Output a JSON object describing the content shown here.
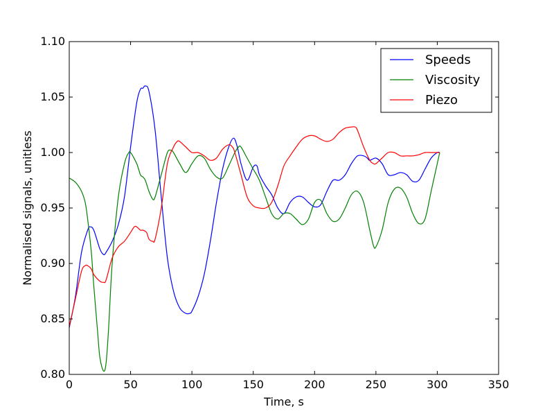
{
  "chart_data": {
    "type": "line",
    "title": "",
    "xlabel": "Time, s",
    "ylabel": "Normalised signals, unitless",
    "xlim": [
      0,
      350
    ],
    "ylim": [
      0.8,
      1.1
    ],
    "xticks": [
      0,
      50,
      100,
      150,
      200,
      250,
      300,
      350
    ],
    "yticks": [
      0.8,
      0.85,
      0.9,
      0.95,
      1.0,
      1.05,
      1.1
    ],
    "xtick_labels": [
      "0",
      "50",
      "100",
      "150",
      "200",
      "250",
      "300",
      "350"
    ],
    "ytick_labels": [
      "0.80",
      "0.85",
      "0.90",
      "0.95",
      "1.00",
      "1.05",
      "1.10"
    ],
    "grid": false,
    "legend_position": "top-right",
    "series": [
      {
        "name": "Speeds",
        "color": "#0000ff",
        "x": [
          0,
          5,
          10,
          15,
          17,
          20,
          25,
          28,
          30,
          35,
          40,
          45,
          50,
          55,
          58,
          60,
          62,
          65,
          70,
          75,
          80,
          85,
          90,
          95,
          98,
          100,
          105,
          110,
          115,
          120,
          125,
          130,
          134,
          137,
          140,
          145,
          150,
          153,
          155,
          160,
          165,
          170,
          175,
          180,
          185,
          190,
          195,
          200,
          205,
          210,
          215,
          220,
          225,
          230,
          235,
          240,
          243,
          245,
          250,
          255,
          260,
          265,
          270,
          275,
          280,
          285,
          290,
          295,
          300,
          302
        ],
        "y": [
          0.842,
          0.87,
          0.91,
          0.93,
          0.933,
          0.93,
          0.913,
          0.908,
          0.91,
          0.92,
          0.935,
          0.96,
          1.005,
          1.045,
          1.057,
          1.058,
          1.06,
          1.055,
          1.02,
          0.96,
          0.905,
          0.875,
          0.86,
          0.855,
          0.855,
          0.857,
          0.87,
          0.89,
          0.92,
          0.955,
          0.985,
          1.005,
          1.013,
          1.005,
          0.99,
          0.975,
          0.987,
          0.988,
          0.98,
          0.97,
          0.962,
          0.95,
          0.945,
          0.955,
          0.96,
          0.96,
          0.955,
          0.951,
          0.953,
          0.965,
          0.975,
          0.975,
          0.98,
          0.99,
          0.997,
          0.997,
          0.995,
          0.993,
          0.995,
          0.99,
          0.98,
          0.98,
          0.982,
          0.98,
          0.974,
          0.975,
          0.985,
          0.995,
          1.0,
          1.0
        ]
      },
      {
        "name": "Viscosity",
        "color": "#008000",
        "x": [
          0,
          3,
          6,
          10,
          13,
          15,
          18,
          20,
          23,
          25,
          28,
          30,
          32,
          35,
          40,
          45,
          48,
          50,
          55,
          58,
          60,
          62,
          65,
          68,
          70,
          75,
          80,
          83,
          85,
          90,
          95,
          100,
          105,
          110,
          115,
          120,
          125,
          130,
          135,
          138,
          140,
          145,
          150,
          155,
          160,
          165,
          170,
          175,
          180,
          185,
          190,
          195,
          200,
          205,
          210,
          215,
          220,
          225,
          230,
          235,
          240,
          245,
          248,
          250,
          255,
          260,
          265,
          270,
          275,
          280,
          285,
          290,
          295,
          300,
          302
        ],
        "y": [
          0.977,
          0.975,
          0.972,
          0.965,
          0.955,
          0.94,
          0.91,
          0.88,
          0.84,
          0.815,
          0.803,
          0.81,
          0.84,
          0.9,
          0.96,
          0.99,
          0.999,
          1.0,
          0.99,
          0.98,
          0.978,
          0.975,
          0.965,
          0.958,
          0.96,
          0.98,
          1.0,
          1.002,
          1.0,
          0.99,
          0.982,
          0.99,
          0.997,
          0.995,
          0.985,
          0.978,
          0.977,
          0.988,
          1.0,
          1.005,
          1.005,
          0.995,
          0.985,
          0.975,
          0.96,
          0.945,
          0.94,
          0.945,
          0.945,
          0.94,
          0.935,
          0.94,
          0.955,
          0.957,
          0.945,
          0.938,
          0.94,
          0.95,
          0.962,
          0.965,
          0.955,
          0.93,
          0.916,
          0.915,
          0.93,
          0.955,
          0.967,
          0.968,
          0.96,
          0.945,
          0.936,
          0.94,
          0.965,
          0.99,
          1.0
        ]
      },
      {
        "name": "Piezo",
        "color": "#ff0000",
        "x": [
          0,
          5,
          10,
          13,
          15,
          18,
          20,
          25,
          28,
          30,
          35,
          40,
          45,
          50,
          53,
          55,
          58,
          60,
          63,
          65,
          68,
          70,
          75,
          80,
          85,
          88,
          90,
          95,
          100,
          105,
          110,
          115,
          120,
          125,
          130,
          133,
          135,
          140,
          145,
          150,
          155,
          160,
          165,
          170,
          175,
          180,
          185,
          190,
          195,
          200,
          205,
          210,
          215,
          220,
          225,
          230,
          233,
          235,
          240,
          245,
          248,
          250,
          255,
          260,
          265,
          270,
          275,
          280,
          285,
          290,
          295,
          300,
          302
        ],
        "y": [
          0.843,
          0.868,
          0.893,
          0.898,
          0.898,
          0.895,
          0.89,
          0.884,
          0.883,
          0.885,
          0.905,
          0.915,
          0.92,
          0.928,
          0.933,
          0.933,
          0.93,
          0.93,
          0.928,
          0.922,
          0.92,
          0.922,
          0.95,
          0.99,
          1.005,
          1.01,
          1.01,
          1.005,
          1.0,
          1.0,
          0.997,
          0.993,
          0.995,
          1.003,
          1.007,
          1.005,
          1.0,
          0.98,
          0.96,
          0.952,
          0.95,
          0.95,
          0.955,
          0.97,
          0.988,
          0.997,
          1.005,
          1.012,
          1.015,
          1.015,
          1.012,
          1.01,
          1.012,
          1.018,
          1.022,
          1.023,
          1.023,
          1.02,
          1.005,
          0.993,
          0.99,
          0.99,
          0.995,
          1.0,
          1.0,
          0.997,
          0.997,
          0.997,
          0.998,
          1.0,
          1.0,
          1.0,
          1.0
        ]
      }
    ]
  }
}
